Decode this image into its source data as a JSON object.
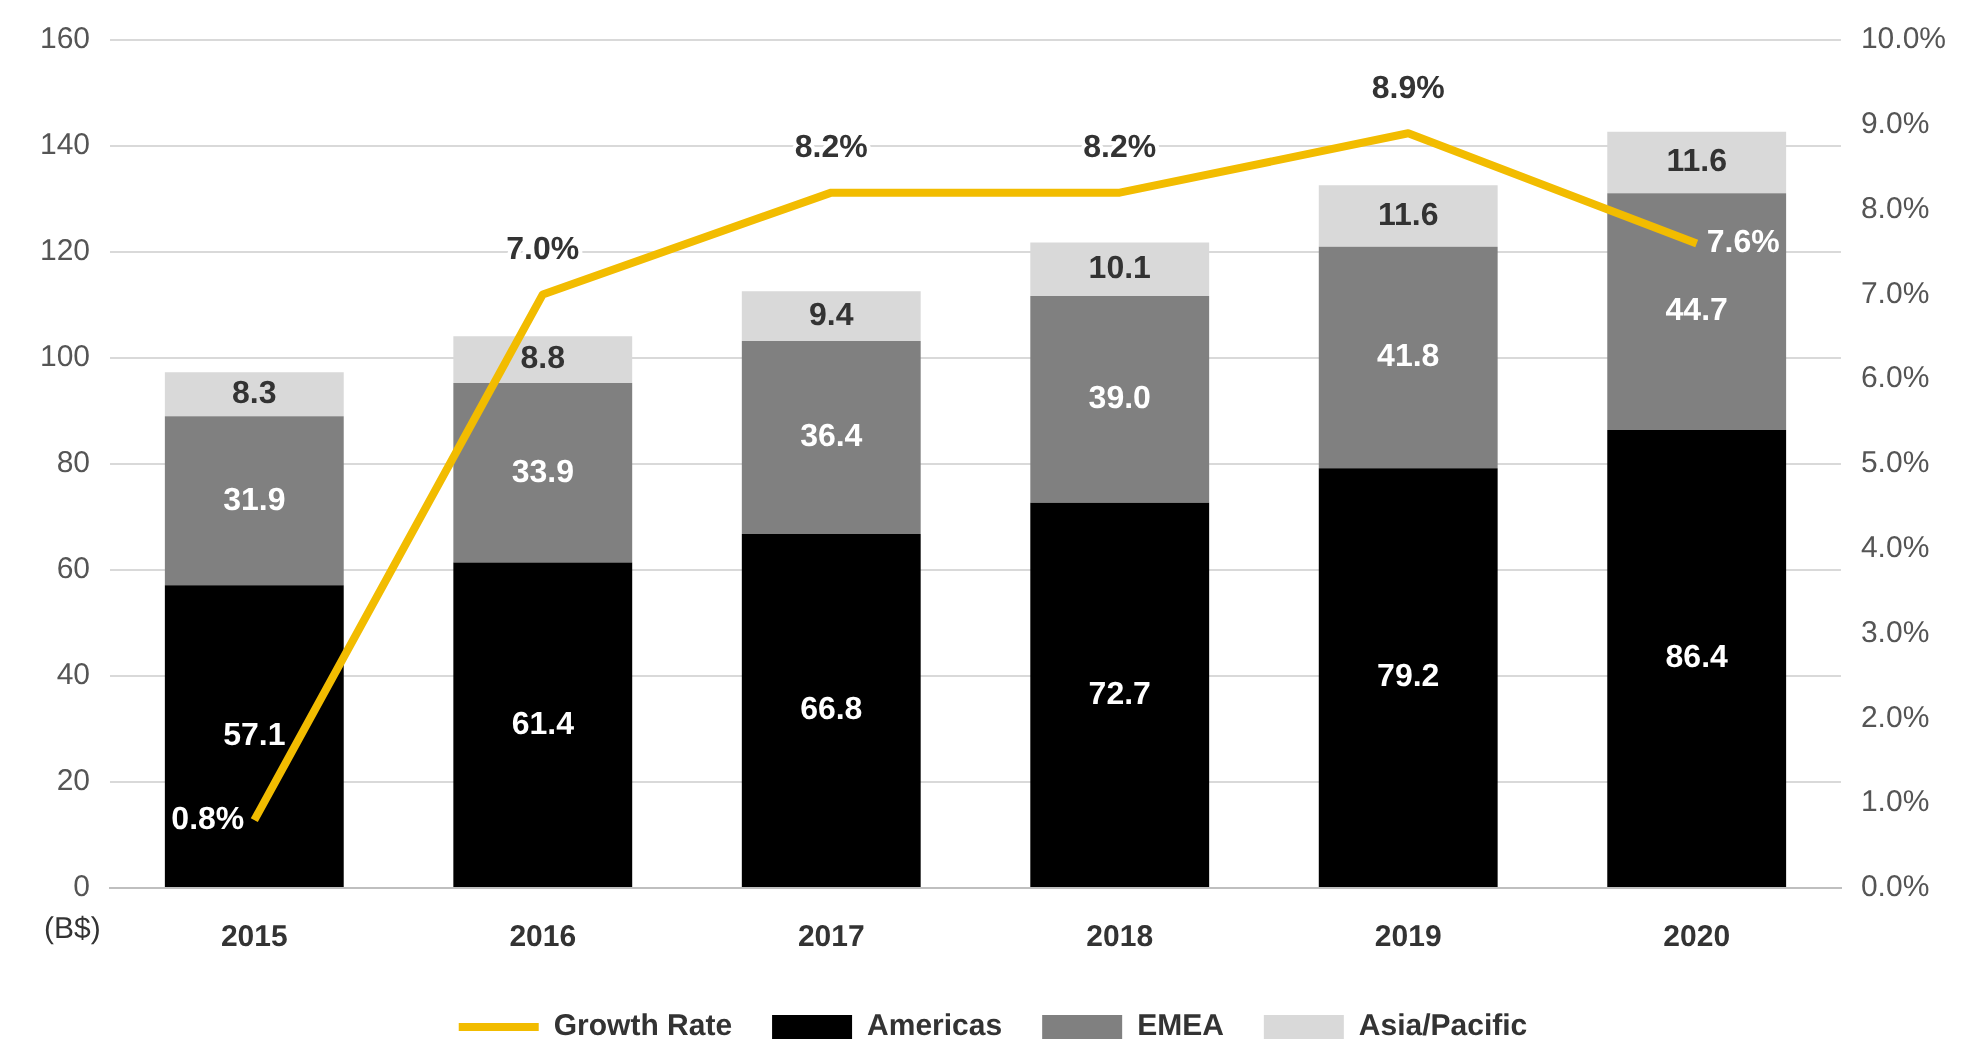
{
  "chart_data": {
    "type": "bar",
    "stacked": true,
    "ylabel": "(B$)",
    "categories": [
      "2015",
      "2016",
      "2017",
      "2018",
      "2019",
      "2020"
    ],
    "series": [
      {
        "name": "Americas",
        "color": "#000000",
        "values": [
          57.1,
          61.4,
          66.8,
          72.7,
          79.2,
          86.4
        ],
        "value_labels": [
          "57.1",
          "61.4",
          "66.8",
          "72.7",
          "79.2",
          "86.4"
        ]
      },
      {
        "name": "EMEA",
        "color": "#808080",
        "values": [
          31.9,
          33.9,
          36.4,
          39.0,
          41.8,
          44.7
        ],
        "value_labels": [
          "31.9",
          "33.9",
          "36.4",
          "39.0",
          "41.8",
          "44.7"
        ]
      },
      {
        "name": "Asia/Pacific",
        "color": "#d9d9d9",
        "values": [
          8.3,
          8.8,
          9.4,
          10.1,
          11.6,
          11.6
        ],
        "value_labels": [
          "8.3",
          "8.8",
          "9.4",
          "10.1",
          "11.6",
          "11.6"
        ]
      },
      {
        "name": "Growth Rate",
        "type": "line",
        "axis": "y2",
        "color": "#f2bc00",
        "values": [
          0.8,
          7.0,
          8.2,
          8.2,
          8.9,
          7.6
        ],
        "value_labels": [
          "0.8%",
          "7.0%",
          "8.2%",
          "8.2%",
          "8.9%",
          "7.6%"
        ]
      }
    ],
    "ylim": [
      0,
      160
    ],
    "yticks": [
      0,
      20,
      40,
      60,
      80,
      100,
      120,
      140,
      160
    ],
    "y2lim": [
      0,
      10
    ],
    "y2ticks": [
      {
        "value": 0,
        "label": "0.0%"
      },
      {
        "value": 1,
        "label": "1.0%"
      },
      {
        "value": 2,
        "label": "2.0%"
      },
      {
        "value": 3,
        "label": "3.0%"
      },
      {
        "value": 4,
        "label": "4.0%"
      },
      {
        "value": 5,
        "label": "5.0%"
      },
      {
        "value": 6,
        "label": "6.0%"
      },
      {
        "value": 7,
        "label": "7.0%"
      },
      {
        "value": 8,
        "label": "8.0%"
      },
      {
        "value": 9,
        "label": "9.0%"
      },
      {
        "value": 10,
        "label": "10.0%"
      }
    ],
    "grid": "y",
    "legend": "bottom",
    "marker": "none",
    "line_style": "solid"
  }
}
